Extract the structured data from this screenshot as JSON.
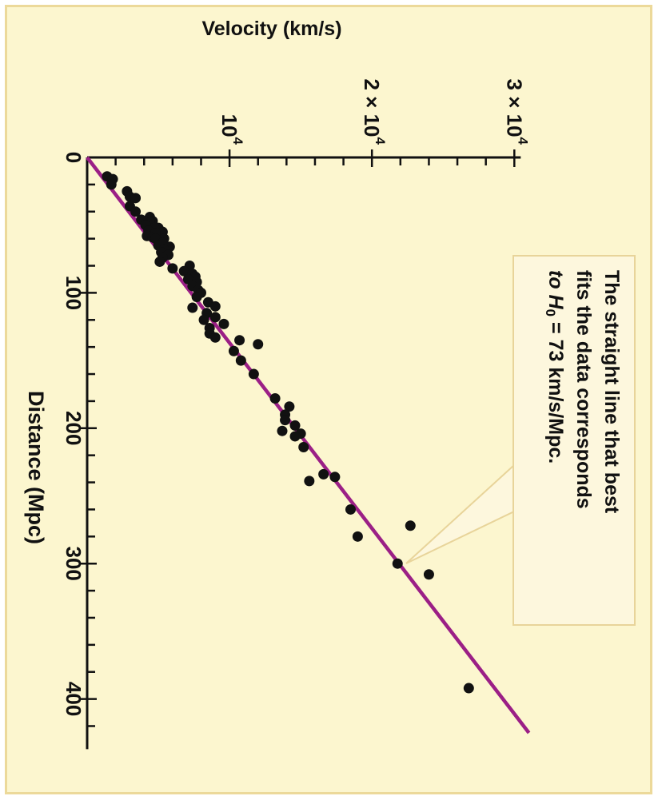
{
  "colors": {
    "background": "#fcf6cf",
    "frame": "#ecd99a",
    "line": "#9b1f86",
    "points": "#111111",
    "callout_bg": "#fdf7dd",
    "callout_border": "#e8d49a"
  },
  "chart_data": {
    "type": "scatter",
    "xlabel": "Distance (Mpc)",
    "ylabel": "Velocity (km/s)",
    "xlim": [
      0,
      430
    ],
    "ylim": [
      0,
      30000
    ],
    "x_ticks": [
      {
        "value": 0,
        "label": "0"
      },
      {
        "value": 100,
        "label": "100"
      },
      {
        "value": 200,
        "label": "200"
      },
      {
        "value": 300,
        "label": "300"
      },
      {
        "value": 400,
        "label": "400"
      }
    ],
    "y_ticks": [
      {
        "value": 0,
        "label": "0"
      },
      {
        "value": 10000,
        "label": "10",
        "exp": "4",
        "prefix": ""
      },
      {
        "value": 20000,
        "label": "10",
        "exp": "4",
        "prefix": "2 × "
      },
      {
        "value": 30000,
        "label": "10",
        "exp": "4",
        "prefix": "3 × "
      }
    ],
    "fit_line": {
      "slope": 73,
      "from": 0,
      "to": 425
    },
    "annotation": {
      "lines": [
        "The straight line that best",
        "fits the data corresponds",
        "to H",
        "0",
        " = 73 km/s/Mpc."
      ]
    },
    "points": [
      [
        14,
        1400
      ],
      [
        16,
        1800
      ],
      [
        20,
        1700
      ],
      [
        25,
        2800
      ],
      [
        29,
        3000
      ],
      [
        30,
        3400
      ],
      [
        36,
        3000
      ],
      [
        40,
        3400
      ],
      [
        44,
        4400
      ],
      [
        46,
        3800
      ],
      [
        47,
        4600
      ],
      [
        48,
        4400
      ],
      [
        50,
        4100
      ],
      [
        52,
        5000
      ],
      [
        52,
        4700
      ],
      [
        54,
        4300
      ],
      [
        55,
        5300
      ],
      [
        56,
        4800
      ],
      [
        58,
        4200
      ],
      [
        59,
        4600
      ],
      [
        60,
        5400
      ],
      [
        60,
        4800
      ],
      [
        63,
        5300
      ],
      [
        65,
        5000
      ],
      [
        66,
        5800
      ],
      [
        68,
        5400
      ],
      [
        70,
        5200
      ],
      [
        72,
        5700
      ],
      [
        74,
        5300
      ],
      [
        77,
        5100
      ],
      [
        80,
        7200
      ],
      [
        82,
        6000
      ],
      [
        84,
        6800
      ],
      [
        86,
        7400
      ],
      [
        88,
        7600
      ],
      [
        90,
        7100
      ],
      [
        92,
        7700
      ],
      [
        95,
        7400
      ],
      [
        98,
        7800
      ],
      [
        100,
        8000
      ],
      [
        103,
        7700
      ],
      [
        107,
        8500
      ],
      [
        110,
        9000
      ],
      [
        111,
        7400
      ],
      [
        115,
        8400
      ],
      [
        118,
        9000
      ],
      [
        120,
        8200
      ],
      [
        123,
        9600
      ],
      [
        126,
        8600
      ],
      [
        130,
        8600
      ],
      [
        133,
        9000
      ],
      [
        135,
        10700
      ],
      [
        138,
        12000
      ],
      [
        143,
        10300
      ],
      [
        150,
        10800
      ],
      [
        160,
        11700
      ],
      [
        178,
        13200
      ],
      [
        184,
        14200
      ],
      [
        190,
        13900
      ],
      [
        194,
        13900
      ],
      [
        198,
        14600
      ],
      [
        202,
        13700
      ],
      [
        204,
        15000
      ],
      [
        206,
        14600
      ],
      [
        214,
        15200
      ],
      [
        234,
        16600
      ],
      [
        236,
        17400
      ],
      [
        239,
        15600
      ],
      [
        260,
        18500
      ],
      [
        280,
        19000
      ],
      [
        272,
        22700
      ],
      [
        300,
        21800
      ],
      [
        308,
        24000
      ],
      [
        392,
        26800
      ]
    ]
  }
}
